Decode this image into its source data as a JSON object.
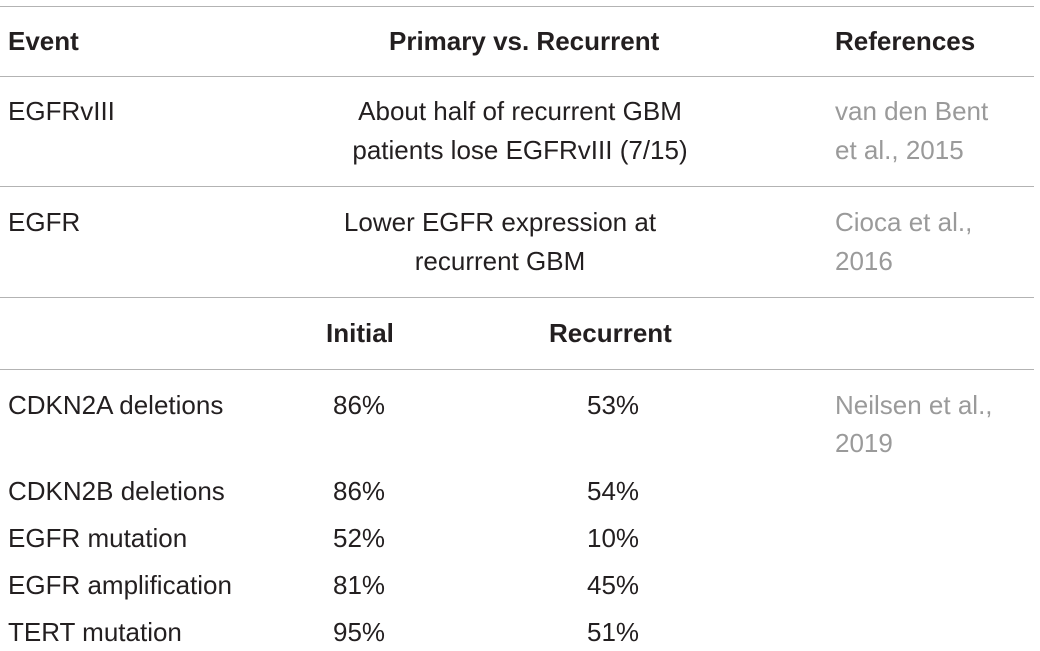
{
  "table": {
    "headers": {
      "event": "Event",
      "comparison": "Primary vs. Recurrent",
      "references": "References"
    },
    "rows": [
      {
        "event": "EGFRvIII",
        "description_line1": "About half of recurrent GBM",
        "description_line2": "patients lose EGFRvIII (7/15)",
        "reference_line1": "van den Bent",
        "reference_line2": "et al., 2015"
      },
      {
        "event": "EGFR",
        "description_line1": "Lower EGFR expression at",
        "description_line2": "recurrent GBM",
        "reference_line1": "Cioca et al.,",
        "reference_line2": "2016"
      }
    ],
    "subheaders": {
      "initial": "Initial",
      "recurrent": "Recurrent"
    },
    "sub_rows": [
      {
        "event": "CDKN2A deletions",
        "initial": "86%",
        "recurrent": "53%"
      },
      {
        "event": "CDKN2B deletions",
        "initial": "86%",
        "recurrent": "54%"
      },
      {
        "event": "EGFR mutation",
        "initial": "52%",
        "recurrent": "10%"
      },
      {
        "event": "EGFR amplification",
        "initial": "81%",
        "recurrent": "45%"
      },
      {
        "event": "TERT mutation",
        "initial": "95%",
        "recurrent": "51%"
      }
    ],
    "sub_reference_line1": "Neilsen et al.,",
    "sub_reference_line2": "2019"
  }
}
